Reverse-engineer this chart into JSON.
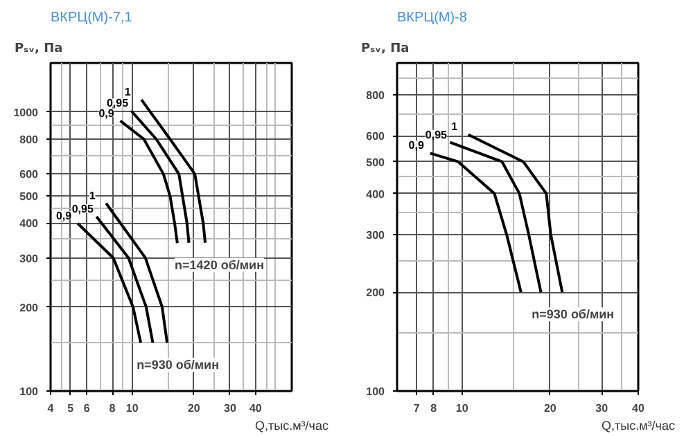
{
  "chart_data": [
    {
      "type": "line",
      "title": "ВКРЦ(М)-7,1",
      "xlabel": "Q,тыс.м³/час",
      "ylabel": "Pₛᵥ, Па",
      "log": "xy",
      "grid": true,
      "marker": "none",
      "line_style": "solid",
      "xlim": [
        4,
        60
      ],
      "ylim": [
        100,
        1500
      ],
      "xticks": [
        4,
        5,
        6,
        8,
        10,
        20,
        30,
        40
      ],
      "yticks": [
        100,
        200,
        300,
        400,
        500,
        600,
        800,
        1000
      ],
      "series": [
        {
          "name": "0,9",
          "color": "#000000",
          "x": [
            8.75,
            11.4,
            14.2,
            15.3,
            16.1,
            16.6
          ],
          "values": [
            930,
            800,
            600,
            500,
            400,
            339
          ]
        },
        {
          "name": "0,95",
          "color": "#000000",
          "x": [
            9.9,
            13.1,
            16.9,
            18.5,
            18.9
          ],
          "values": [
            1010,
            800,
            600,
            400,
            340
          ]
        },
        {
          "name": "1",
          "color": "#000000",
          "x": [
            11.1,
            15.3,
            20.2,
            22.2,
            22.7
          ],
          "values": [
            1107,
            800,
            600,
            400,
            340
          ]
        },
        {
          "name": "0,9",
          "color": "#000000",
          "x": [
            5.42,
            8.09,
            10.1,
            11.0
          ],
          "values": [
            399,
            300,
            200,
            149
          ]
        },
        {
          "name": "0,95",
          "color": "#000000",
          "x": [
            6.7,
            9.6,
            11.7,
            12.6
          ],
          "values": [
            422,
            300,
            200,
            149
          ]
        },
        {
          "name": "1",
          "color": "#000000",
          "x": [
            7.46,
            11.6,
            14.0,
            14.8
          ],
          "values": [
            471,
            300,
            200,
            149
          ]
        }
      ],
      "annotations": [
        "n=1420 об/мин",
        "n=930 об/мин"
      ]
    },
    {
      "type": "line",
      "title": "ВКРЦ(М)-8",
      "xlabel": "Q,тыс.м³/час",
      "ylabel": "Pₛᵥ, Па",
      "log": "xy",
      "grid": true,
      "marker": "none",
      "line_style": "solid",
      "xlim": [
        6,
        40
      ],
      "ylim": [
        100,
        1000
      ],
      "xticks": [
        7,
        8,
        10,
        20,
        30,
        40
      ],
      "yticks": [
        100,
        200,
        300,
        400,
        500,
        600,
        800
      ],
      "series": [
        {
          "name": "0,9",
          "color": "#000000",
          "x": [
            7.78,
            9.7,
            12.9,
            14.2,
            15.9
          ],
          "values": [
            531,
            500,
            400,
            300,
            200
          ]
        },
        {
          "name": "0,95",
          "color": "#000000",
          "x": [
            9.1,
            13.7,
            15.7,
            16.9,
            18.6
          ],
          "values": [
            573,
            500,
            400,
            300,
            200
          ]
        },
        {
          "name": "1",
          "color": "#000000",
          "x": [
            10.5,
            16.2,
            19.4,
            20.1,
            22.0
          ],
          "values": [
            605,
            500,
            400,
            300,
            200
          ]
        }
      ],
      "annotations": [
        "n=930 об/мин"
      ]
    }
  ]
}
